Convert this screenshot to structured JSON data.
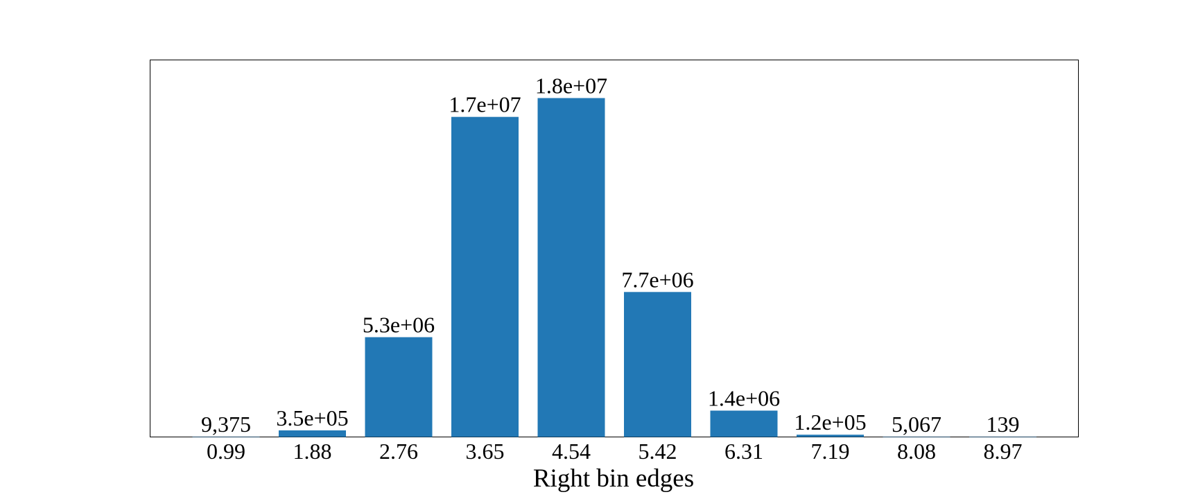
{
  "chart_data": {
    "type": "bar",
    "xlabel": "Right bin edges",
    "ylabel": "",
    "title": "",
    "categories": [
      "0.99",
      "1.88",
      "2.76",
      "3.65",
      "4.54",
      "5.42",
      "6.31",
      "7.19",
      "8.08",
      "8.97"
    ],
    "values": [
      9375,
      350000,
      5300000,
      17000000,
      18000000,
      7700000,
      1400000,
      120000,
      5067,
      139
    ],
    "data_labels": [
      "9,375",
      "3.5e+05",
      "5.3e+06",
      "1.7e+07",
      "1.8e+07",
      "7.7e+06",
      "1.4e+06",
      "1.2e+05",
      "5,067",
      "139"
    ],
    "ylim": [
      0,
      18000000
    ],
    "yaxis_visible": false,
    "grid": false,
    "legend": "none",
    "colors": {
      "bar": "#2278b5",
      "frame": "#000000",
      "background": "#ffffff"
    }
  }
}
